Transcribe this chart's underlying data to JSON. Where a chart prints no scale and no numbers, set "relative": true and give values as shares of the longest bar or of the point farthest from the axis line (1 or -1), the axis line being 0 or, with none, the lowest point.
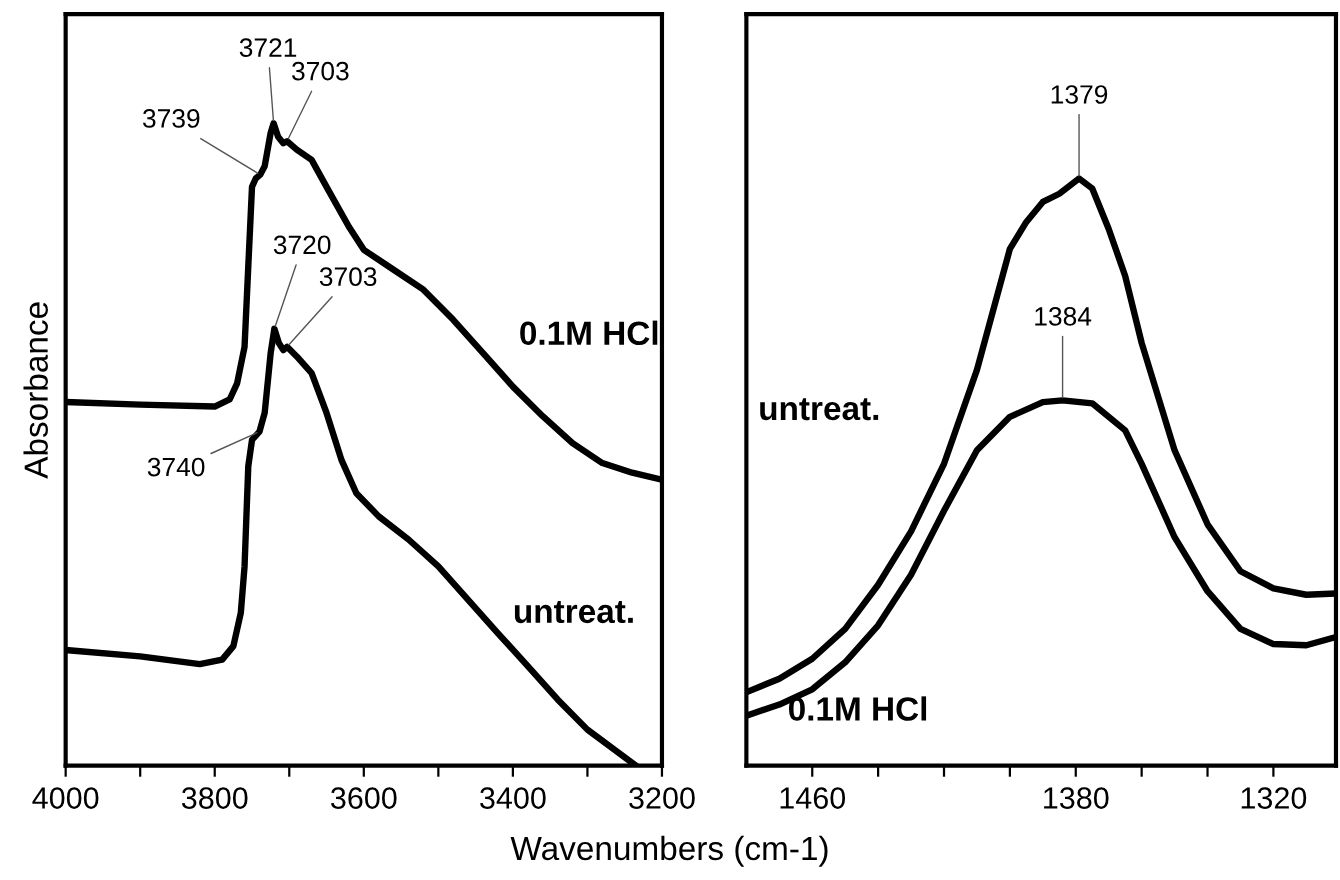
{
  "chart_data": [
    {
      "type": "line",
      "relative": true,
      "xlabel": "Wavenumbers (cm-1)",
      "ylabel": "Absorbance",
      "xlim": [
        4000,
        3200
      ],
      "xticks": [
        4000,
        {
          "value": 3900,
          "label": null
        },
        3800,
        {
          "value": 3700,
          "label": null
        },
        3600,
        {
          "value": 3500,
          "label": null
        },
        3400,
        {
          "value": 3300,
          "label": null
        },
        3200
      ],
      "tick_labels": "x",
      "grid": false,
      "legend": false,
      "line_style": "solid",
      "marker": "none",
      "series": [
        {
          "name": "0.1M HCl",
          "color": "#000000",
          "x": [
            4000,
            3900,
            3800,
            3780,
            3770,
            3760,
            3755,
            3750,
            3745,
            3739,
            3733,
            3725,
            3721,
            3715,
            3708,
            3703,
            3690,
            3670,
            3650,
            3620,
            3600,
            3560,
            3520,
            3480,
            3440,
            3400,
            3360,
            3320,
            3280,
            3240,
            3200
          ],
          "values": [
            0.566,
            0.562,
            0.559,
            0.57,
            0.595,
            0.652,
            0.777,
            0.901,
            0.914,
            0.92,
            0.933,
            0.985,
            1.0,
            0.979,
            0.969,
            0.972,
            0.959,
            0.943,
            0.901,
            0.839,
            0.803,
            0.772,
            0.741,
            0.694,
            0.642,
            0.59,
            0.544,
            0.502,
            0.471,
            0.456,
            0.445
          ]
        },
        {
          "name": "untreat.",
          "color": "#000000",
          "x": [
            4000,
            3900,
            3820,
            3790,
            3775,
            3765,
            3760,
            3755,
            3750,
            3740,
            3733,
            3725,
            3720,
            3714,
            3708,
            3703,
            3690,
            3670,
            3650,
            3630,
            3610,
            3580,
            3540,
            3500,
            3460,
            3420,
            3380,
            3340,
            3300,
            3235
          ],
          "values": [
            0.18,
            0.17,
            0.158,
            0.165,
            0.186,
            0.238,
            0.31,
            0.466,
            0.507,
            0.52,
            0.549,
            0.642,
            0.68,
            0.658,
            0.647,
            0.652,
            0.637,
            0.611,
            0.549,
            0.476,
            0.424,
            0.388,
            0.352,
            0.31,
            0.258,
            0.206,
            0.155,
            0.103,
            0.056,
            0.0
          ]
        }
      ],
      "annotations": [
        {
          "text": "3721",
          "x": 3721,
          "y": 1.0
        },
        {
          "text": "3703",
          "x": 3703,
          "y": 0.972
        },
        {
          "text": "3739",
          "x": 3739,
          "y": 0.92
        },
        {
          "text": "3720",
          "x": 3720,
          "y": 0.68
        },
        {
          "text": "3703",
          "x": 3703,
          "y": 0.652
        },
        {
          "text": "3740",
          "x": 3740,
          "y": 0.52
        }
      ]
    },
    {
      "type": "line",
      "relative": true,
      "xlim": [
        1480,
        1301
      ],
      "xticks": [
        1460,
        {
          "value": 1440,
          "label": null
        },
        {
          "value": 1420,
          "label": null
        },
        {
          "value": 1400,
          "label": null
        },
        1380,
        {
          "value": 1360,
          "label": null
        },
        {
          "value": 1340,
          "label": null
        },
        1320
      ],
      "tick_labels": "x",
      "grid": false,
      "legend": false,
      "line_style": "solid",
      "marker": "none",
      "series": [
        {
          "name": "untreat.",
          "color": "#000000",
          "x": [
            1480,
            1470,
            1460,
            1450,
            1440,
            1430,
            1420,
            1410,
            1400,
            1395,
            1390,
            1385,
            1379,
            1375,
            1370,
            1365,
            1360,
            1350,
            1340,
            1330,
            1320,
            1310,
            1301
          ],
          "values": [
            0.125,
            0.148,
            0.182,
            0.233,
            0.308,
            0.399,
            0.514,
            0.674,
            0.88,
            0.926,
            0.96,
            0.974,
            1.0,
            0.983,
            0.914,
            0.834,
            0.72,
            0.537,
            0.411,
            0.331,
            0.302,
            0.291,
            0.293
          ]
        },
        {
          "name": "0.1M HCl",
          "color": "#000000",
          "x": [
            1480,
            1470,
            1460,
            1450,
            1440,
            1430,
            1420,
            1410,
            1400,
            1390,
            1384,
            1375,
            1365,
            1360,
            1350,
            1340,
            1330,
            1320,
            1310,
            1301
          ],
          "values": [
            0.085,
            0.104,
            0.13,
            0.176,
            0.239,
            0.325,
            0.434,
            0.537,
            0.594,
            0.619,
            0.622,
            0.617,
            0.571,
            0.514,
            0.389,
            0.297,
            0.233,
            0.207,
            0.205,
            0.219
          ]
        }
      ],
      "annotations": [
        {
          "text": "1379",
          "x": 1379,
          "y": 1.0
        },
        {
          "text": "1384",
          "x": 1384,
          "y": 0.622
        }
      ]
    }
  ]
}
